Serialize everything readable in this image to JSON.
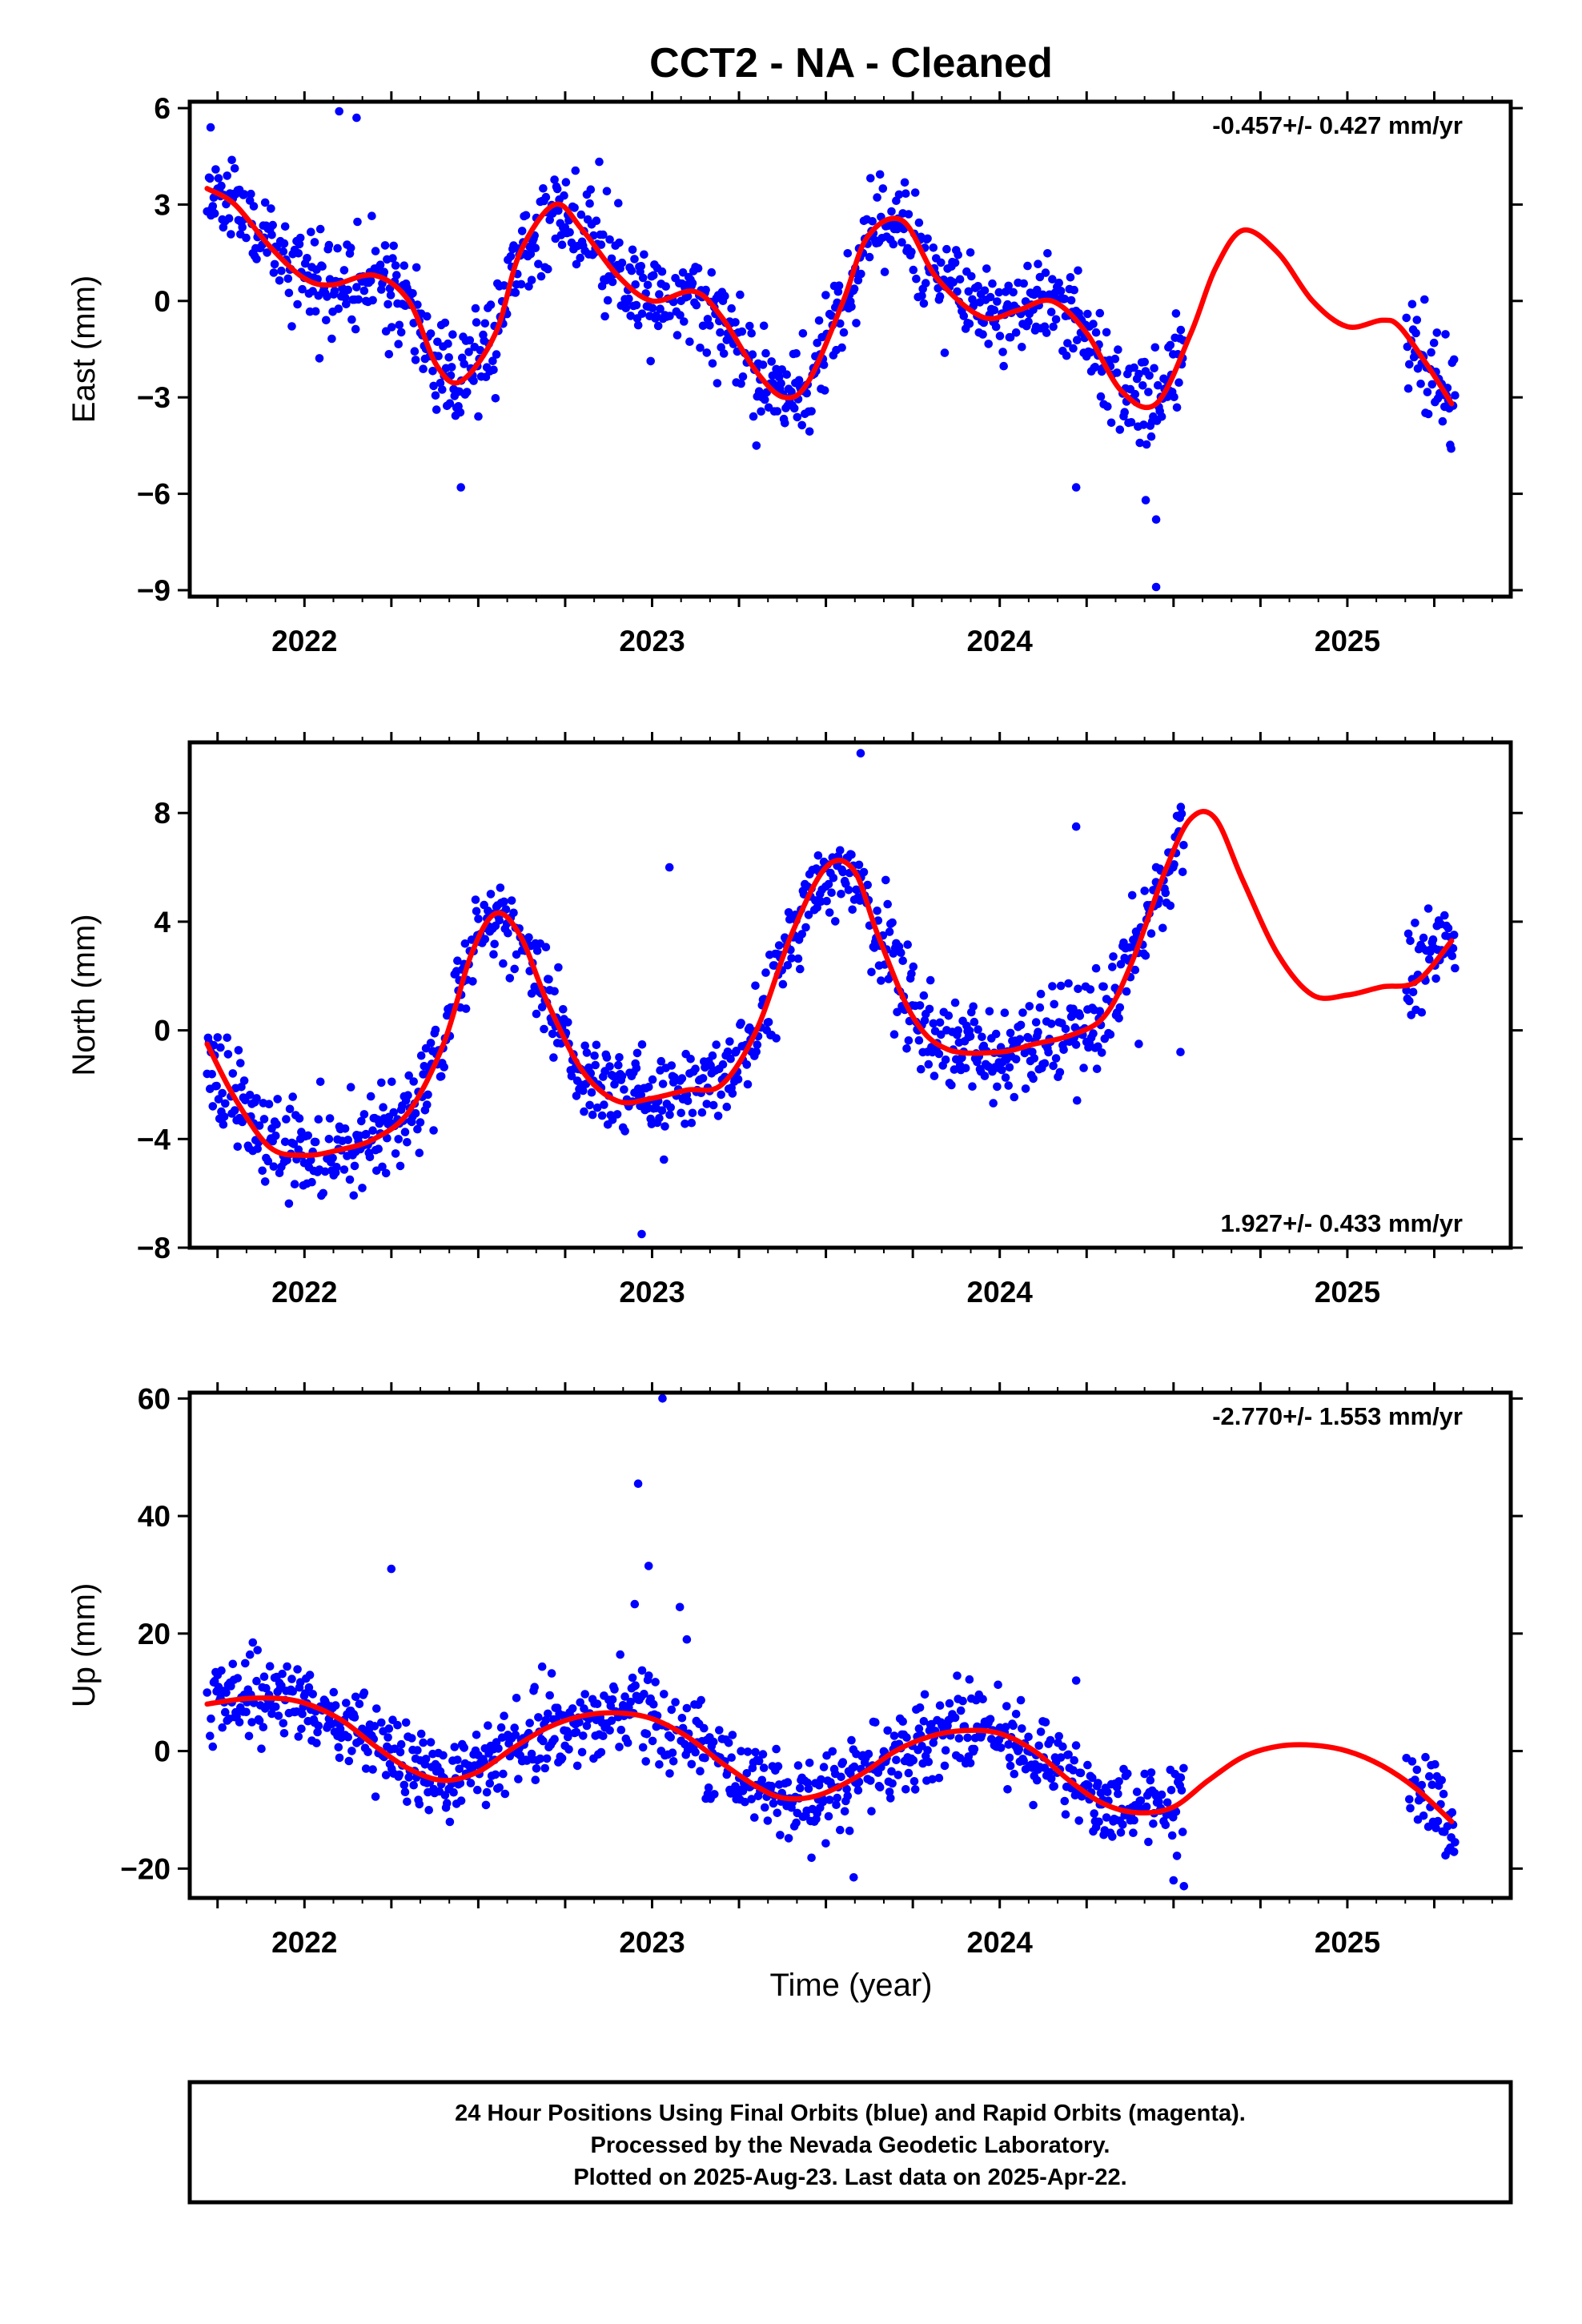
{
  "page": {
    "title": "CCT2  - NA - Cleaned",
    "x_axis_title": "Time (year)",
    "footer_lines": [
      "24 Hour Positions Using Final Orbits (blue) and Rapid Orbits (magenta).",
      "Processed by the Nevada Geodetic Laboratory.",
      "Plotted on 2025-Aug-23. Last data on 2025-Apr-22."
    ]
  },
  "colors": {
    "points": "#0000ff",
    "fit": "#ff0000",
    "axes": "#000000"
  },
  "chart_data": [
    {
      "type": "scatter",
      "title": "CCT2  - NA - Cleaned",
      "ylabel": "East (mm)",
      "xlabel": "",
      "xlim": [
        2021.67,
        2025.47
      ],
      "ylim": [
        -9.2,
        6.2
      ],
      "yticks": [
        -9,
        -6,
        -3,
        0,
        3,
        6
      ],
      "ytick_labels": [
        "−9",
        "−6",
        "−3",
        "0",
        "3",
        "6"
      ],
      "xticks": [
        2022,
        2023,
        2024,
        2025
      ],
      "xtick_labels": [
        "2022",
        "2023",
        "2024",
        "2025"
      ],
      "grid": false,
      "rate_label": "-0.457+/- 0.427 mm/yr",
      "rate_position": "top-right",
      "points_seed": 11,
      "noise_sd": 0.75,
      "point_segments": [
        [
          2021.72,
          2024.53
        ],
        [
          2025.17,
          2025.31
        ]
      ],
      "outliers": [
        [
          2022.1,
          5.9
        ],
        [
          2022.15,
          5.7
        ],
        [
          2022.45,
          -5.8
        ],
        [
          2023.3,
          -4.5
        ],
        [
          2024.22,
          -5.8
        ],
        [
          2024.42,
          -6.2
        ],
        [
          2024.45,
          -6.8
        ],
        [
          2024.45,
          -8.9
        ],
        [
          2021.73,
          5.4
        ]
      ],
      "series": [
        {
          "name": "fit",
          "points": [
            [
              2021.72,
              3.5
            ],
            [
              2021.8,
              3.0
            ],
            [
              2021.9,
              1.7
            ],
            [
              2022.0,
              0.7
            ],
            [
              2022.08,
              0.5
            ],
            [
              2022.2,
              0.8
            ],
            [
              2022.3,
              0.0
            ],
            [
              2022.38,
              -2.0
            ],
            [
              2022.45,
              -2.5
            ],
            [
              2022.55,
              -1.0
            ],
            [
              2022.62,
              1.5
            ],
            [
              2022.72,
              3.0
            ],
            [
              2022.8,
              2.2
            ],
            [
              2022.9,
              0.8
            ],
            [
              2023.0,
              0.0
            ],
            [
              2023.12,
              0.3
            ],
            [
              2023.2,
              -0.5
            ],
            [
              2023.3,
              -2.2
            ],
            [
              2023.38,
              -3.0
            ],
            [
              2023.45,
              -2.5
            ],
            [
              2023.55,
              0.0
            ],
            [
              2023.62,
              2.0
            ],
            [
              2023.72,
              2.5
            ],
            [
              2023.82,
              0.7
            ],
            [
              2023.95,
              -0.5
            ],
            [
              2024.05,
              -0.3
            ],
            [
              2024.15,
              0.0
            ],
            [
              2024.25,
              -1.0
            ],
            [
              2024.35,
              -2.8
            ],
            [
              2024.45,
              -3.2
            ],
            [
              2024.55,
              -1.0
            ],
            [
              2024.62,
              1.0
            ],
            [
              2024.7,
              2.2
            ],
            [
              2024.8,
              1.5
            ],
            [
              2024.9,
              0.0
            ],
            [
              2025.0,
              -0.8
            ],
            [
              2025.1,
              -0.6
            ],
            [
              2025.15,
              -0.8
            ],
            [
              2025.23,
              -2.0
            ],
            [
              2025.3,
              -3.2
            ]
          ]
        }
      ]
    },
    {
      "type": "scatter",
      "ylabel": "North (mm)",
      "xlabel": "",
      "xlim": [
        2021.67,
        2025.47
      ],
      "ylim": [
        -8.0,
        10.6
      ],
      "yticks": [
        -8,
        -4,
        0,
        4,
        8
      ],
      "ytick_labels": [
        "−8",
        "−4",
        "0",
        "4",
        "8"
      ],
      "xticks": [
        2022,
        2023,
        2024,
        2025
      ],
      "xtick_labels": [
        "2022",
        "2023",
        "2024",
        "2025"
      ],
      "grid": false,
      "rate_label": "1.927+/- 0.433 mm/yr",
      "rate_position": "bottom-right",
      "points_seed": 23,
      "noise_sd": 0.85,
      "point_segments": [
        [
          2021.72,
          2024.53
        ],
        [
          2025.17,
          2025.31
        ]
      ],
      "outliers": [
        [
          2023.05,
          6.0
        ],
        [
          2022.97,
          -7.5
        ],
        [
          2023.6,
          10.2
        ],
        [
          2024.22,
          7.5
        ],
        [
          2024.52,
          -0.8
        ],
        [
          2024.45,
          6.0
        ],
        [
          2024.4,
          -0.5
        ]
      ],
      "series": [
        {
          "name": "fit",
          "points": [
            [
              2021.72,
              -0.5
            ],
            [
              2021.8,
              -2.5
            ],
            [
              2021.9,
              -4.3
            ],
            [
              2022.0,
              -4.6
            ],
            [
              2022.1,
              -4.4
            ],
            [
              2022.2,
              -4.0
            ],
            [
              2022.3,
              -3.0
            ],
            [
              2022.4,
              -0.5
            ],
            [
              2022.48,
              2.8
            ],
            [
              2022.55,
              4.3
            ],
            [
              2022.62,
              3.5
            ],
            [
              2022.7,
              1.0
            ],
            [
              2022.8,
              -1.5
            ],
            [
              2022.9,
              -2.6
            ],
            [
              2023.0,
              -2.5
            ],
            [
              2023.1,
              -2.2
            ],
            [
              2023.2,
              -2.0
            ],
            [
              2023.3,
              0.0
            ],
            [
              2023.4,
              3.5
            ],
            [
              2023.5,
              6.0
            ],
            [
              2023.58,
              5.9
            ],
            [
              2023.65,
              3.5
            ],
            [
              2023.75,
              0.5
            ],
            [
              2023.85,
              -0.7
            ],
            [
              2024.0,
              -0.8
            ],
            [
              2024.1,
              -0.5
            ],
            [
              2024.2,
              -0.2
            ],
            [
              2024.3,
              0.5
            ],
            [
              2024.38,
              2.5
            ],
            [
              2024.48,
              6.0
            ],
            [
              2024.55,
              7.8
            ],
            [
              2024.62,
              7.8
            ],
            [
              2024.7,
              5.5
            ],
            [
              2024.8,
              2.8
            ],
            [
              2024.9,
              1.3
            ],
            [
              2025.0,
              1.3
            ],
            [
              2025.1,
              1.6
            ],
            [
              2025.2,
              1.8
            ],
            [
              2025.3,
              3.3
            ]
          ]
        }
      ]
    },
    {
      "type": "scatter",
      "ylabel": "Up (mm)",
      "xlabel": "Time (year)",
      "xlim": [
        2021.67,
        2025.47
      ],
      "ylim": [
        -25,
        61
      ],
      "yticks": [
        -20,
        0,
        20,
        40,
        60
      ],
      "ytick_labels": [
        "−20",
        "0",
        "20",
        "40",
        "60"
      ],
      "xticks": [
        2022,
        2023,
        2024,
        2025
      ],
      "xtick_labels": [
        "2022",
        "2023",
        "2024",
        "2025"
      ],
      "grid": false,
      "rate_label": "-2.770+/- 1.553 mm/yr",
      "rate_position": "top-right",
      "points_seed": 37,
      "noise_sd": 3.6,
      "point_segments": [
        [
          2021.72,
          2024.53
        ],
        [
          2025.17,
          2025.31
        ]
      ],
      "outliers": [
        [
          2023.03,
          60.0
        ],
        [
          2022.96,
          45.5
        ],
        [
          2022.99,
          31.5
        ],
        [
          2022.25,
          31.0
        ],
        [
          2023.1,
          19.0
        ],
        [
          2023.08,
          24.5
        ],
        [
          2022.95,
          25.0
        ],
        [
          2024.53,
          -23.0
        ],
        [
          2024.5,
          -22.0
        ],
        [
          2023.58,
          -21.5
        ],
        [
          2024.22,
          12.0
        ]
      ],
      "series": [
        {
          "name": "fit",
          "points": [
            [
              2021.72,
              8.0
            ],
            [
              2021.85,
              9.0
            ],
            [
              2021.98,
              8.5
            ],
            [
              2022.1,
              5.5
            ],
            [
              2022.2,
              1.0
            ],
            [
              2022.3,
              -3.0
            ],
            [
              2022.4,
              -5.0
            ],
            [
              2022.5,
              -3.5
            ],
            [
              2022.6,
              0.5
            ],
            [
              2022.7,
              4.0
            ],
            [
              2022.8,
              6.0
            ],
            [
              2022.9,
              6.5
            ],
            [
              2023.0,
              5.5
            ],
            [
              2023.1,
              2.5
            ],
            [
              2023.2,
              -2.0
            ],
            [
              2023.3,
              -6.0
            ],
            [
              2023.38,
              -8.0
            ],
            [
              2023.48,
              -7.5
            ],
            [
              2023.6,
              -4.0
            ],
            [
              2023.7,
              0.0
            ],
            [
              2023.8,
              2.5
            ],
            [
              2023.9,
              3.5
            ],
            [
              2024.0,
              3.0
            ],
            [
              2024.1,
              0.0
            ],
            [
              2024.2,
              -5.0
            ],
            [
              2024.3,
              -9.0
            ],
            [
              2024.4,
              -10.5
            ],
            [
              2024.5,
              -9.5
            ],
            [
              2024.6,
              -5.0
            ],
            [
              2024.7,
              -1.0
            ],
            [
              2024.8,
              0.8
            ],
            [
              2024.9,
              1.0
            ],
            [
              2025.0,
              0.0
            ],
            [
              2025.1,
              -2.5
            ],
            [
              2025.2,
              -6.5
            ],
            [
              2025.3,
              -12.0
            ]
          ]
        }
      ]
    }
  ]
}
